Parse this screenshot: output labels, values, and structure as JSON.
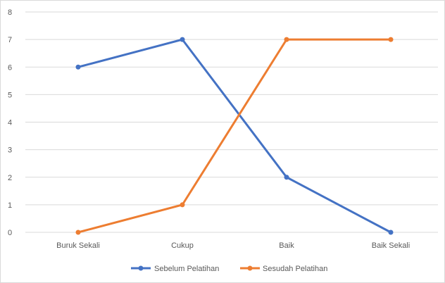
{
  "chart_data": {
    "type": "line",
    "title": "",
    "xlabel": "",
    "ylabel": "",
    "categories": [
      "Buruk Sekali",
      "Cukup",
      "Baik",
      "Baik Sekali"
    ],
    "ylim": [
      0,
      8
    ],
    "yticks": [
      0,
      1,
      2,
      3,
      4,
      5,
      6,
      7,
      8
    ],
    "grid": true,
    "legend_position": "bottom",
    "series": [
      {
        "name": "Sebelum Pelatihan",
        "values": [
          6,
          7,
          2,
          0
        ],
        "color": "#4472c4"
      },
      {
        "name": "Sesudah Pelatihan",
        "values": [
          0,
          1,
          7,
          7
        ],
        "color": "#ed7d31"
      }
    ]
  }
}
